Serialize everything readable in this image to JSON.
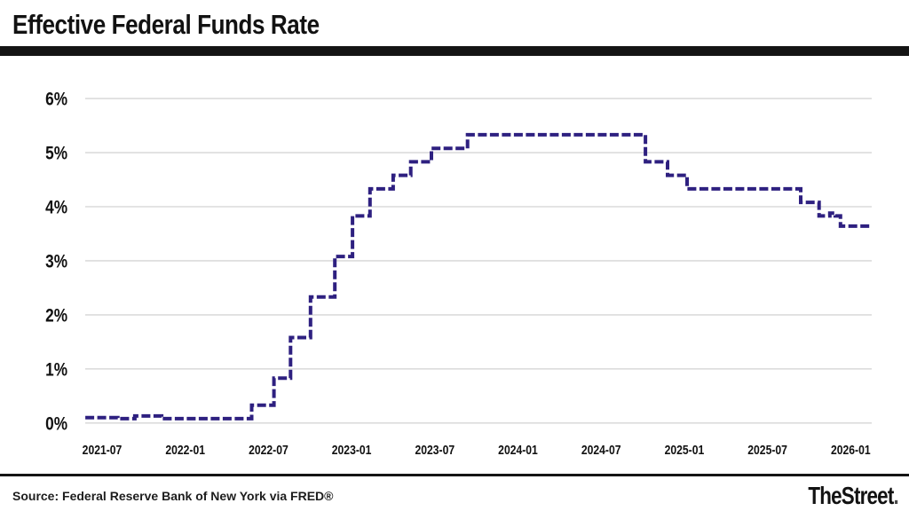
{
  "header": {
    "title": "Effective Federal Funds Rate"
  },
  "footer": {
    "source": "Source: Federal Reserve Bank of New York via FRED®",
    "brand": "TheStreet",
    "brand_period": "."
  },
  "colors": {
    "line": "#2e2080",
    "grid": "#dcdcdc",
    "text": "#111111",
    "bars": "#141414",
    "background": "#ffffff"
  },
  "chart_data": {
    "type": "line",
    "line_style": "stepped, dashed",
    "title": "Effective Federal Funds Rate",
    "xlabel": "",
    "ylabel": "",
    "unit": "%",
    "grid": "horizontal gridlines only",
    "legend": "none",
    "ylim": [
      0,
      6.3
    ],
    "y_ticks": [
      "6%",
      "5%",
      "4%",
      "3%",
      "2%",
      "1%",
      "0%"
    ],
    "x_ticks": [
      "2021-07",
      "2022-01",
      "2022-07",
      "2023-01",
      "2023-07",
      "2024-01",
      "2024-07",
      "2025-01",
      "2025-07",
      "2026-01"
    ],
    "x_range": [
      "2021-05-25",
      "2026-02-16"
    ],
    "series": [
      {
        "name": "Effective Federal Funds Rate (%)",
        "step_points_date_value": [
          [
            "2021-05-25",
            0.1
          ],
          [
            "2021-08-05",
            0.08
          ],
          [
            "2021-09-12",
            0.13
          ],
          [
            "2021-11-10",
            0.08
          ],
          [
            "2022-05-25",
            0.33
          ],
          [
            "2022-07-13",
            0.83
          ],
          [
            "2022-08-19",
            1.58
          ],
          [
            "2022-10-02",
            2.33
          ],
          [
            "2022-11-25",
            3.08
          ],
          [
            "2023-01-03",
            3.83
          ],
          [
            "2023-02-11",
            4.33
          ],
          [
            "2023-04-01",
            4.58
          ],
          [
            "2023-05-09",
            4.83
          ],
          [
            "2023-06-24",
            5.08
          ],
          [
            "2023-09-12",
            5.33
          ],
          [
            "2024-10-07",
            4.83
          ],
          [
            "2024-11-25",
            4.58
          ],
          [
            "2025-01-07",
            4.33
          ],
          [
            "2025-09-13",
            4.08
          ],
          [
            "2025-10-23",
            3.83
          ],
          [
            "2025-11-16",
            3.88
          ],
          [
            "2025-11-28",
            3.83
          ],
          [
            "2025-12-09",
            3.64
          ],
          [
            "2026-02-16",
            3.64
          ]
        ]
      }
    ]
  }
}
